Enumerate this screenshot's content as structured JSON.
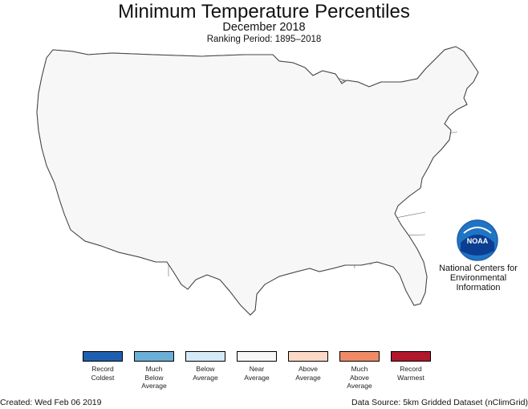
{
  "header": {
    "title": "Minimum Temperature Percentiles",
    "subtitle": "December 2018",
    "ranking_period": "Ranking Period: 1895–2018"
  },
  "map": {
    "region": "Contiguous United States",
    "colors": {
      "record_coldest": "#1f5faf",
      "much_below": "#6baed6",
      "below": "#d6e9f6",
      "near": "#f7f7f7",
      "above": "#fbd9c6",
      "much_above": "#ee8b66",
      "record_warmest": "#b2182b",
      "boundary": "#555555",
      "lake": "#ffffff"
    }
  },
  "agency": {
    "logo_text": "NOAA",
    "name_lines": [
      "National Centers for",
      "Environmental",
      "Information"
    ]
  },
  "legend": [
    {
      "label": "Record\nColdest",
      "color": "#1f5faf"
    },
    {
      "label": "Much\nBelow\nAverage",
      "color": "#6baed6"
    },
    {
      "label": "Below\nAverage",
      "color": "#d6e9f6"
    },
    {
      "label": "Near\nAverage",
      "color": "#f7f7f7"
    },
    {
      "label": "Above\nAverage",
      "color": "#fbd9c6"
    },
    {
      "label": "Much\nAbove\nAverage",
      "color": "#ee8b66"
    },
    {
      "label": "Record\nWarmest",
      "color": "#b2182b"
    }
  ],
  "footer": {
    "created": "Created: Wed Feb 06 2019",
    "source": "Data Source: 5km Gridded Dataset (nClimGrid)"
  }
}
